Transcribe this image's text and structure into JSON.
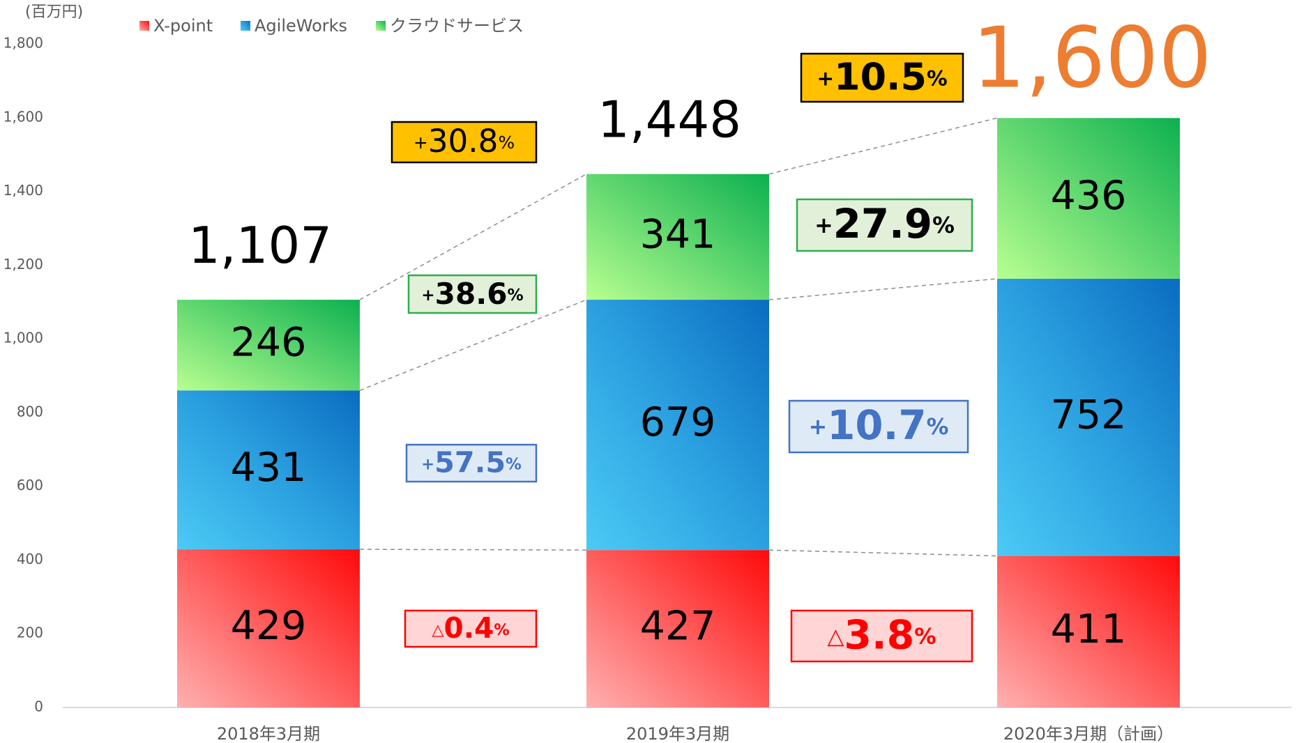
{
  "chart_data": {
    "type": "stacked_bar",
    "unit_label": "(百万円)",
    "categories": [
      "2018年3月期",
      "2019年3月期",
      "2020年3月期（計画）"
    ],
    "series": [
      {
        "name": "X-point",
        "color": "#ff2020",
        "values": [
          429,
          427,
          411
        ]
      },
      {
        "name": "AgileWorks",
        "color": "#1e90dc",
        "values": [
          431,
          679,
          752
        ]
      },
      {
        "name": "クラウドサービス",
        "color": "#4ccf5c",
        "values": [
          246,
          341,
          436
        ]
      }
    ],
    "totals": [
      1107,
      1448,
      1600
    ],
    "total_labels": [
      "1,107",
      "1,448",
      "1,600"
    ],
    "growth": {
      "series": [
        [
          {
            "prefix": "△",
            "value": 0.4,
            "suffix": "%"
          },
          {
            "prefix": "△",
            "value": 3.8,
            "suffix": "%"
          }
        ],
        [
          {
            "prefix": "+",
            "value": 57.5,
            "suffix": "%"
          },
          {
            "prefix": "+",
            "value": 10.7,
            "suffix": "%"
          }
        ],
        [
          {
            "prefix": "+",
            "value": 38.6,
            "suffix": "%"
          },
          {
            "prefix": "+",
            "value": 27.9,
            "suffix": "%"
          }
        ]
      ],
      "total": [
        {
          "prefix": "+",
          "value": 30.8,
          "suffix": "%"
        },
        {
          "prefix": "+",
          "value": 10.5,
          "suffix": "%"
        }
      ]
    },
    "ylim": [
      0,
      1800
    ],
    "yticks": [
      0,
      200,
      400,
      600,
      800,
      {
        "value": 1000,
        "label": "1,000"
      },
      {
        "value": 1200,
        "label": "1,200"
      },
      {
        "value": 1400,
        "label": "1,400"
      },
      {
        "value": 1600,
        "label": "1,600"
      },
      {
        "value": 1800,
        "label": "1,800"
      }
    ],
    "legend": "top-left"
  }
}
